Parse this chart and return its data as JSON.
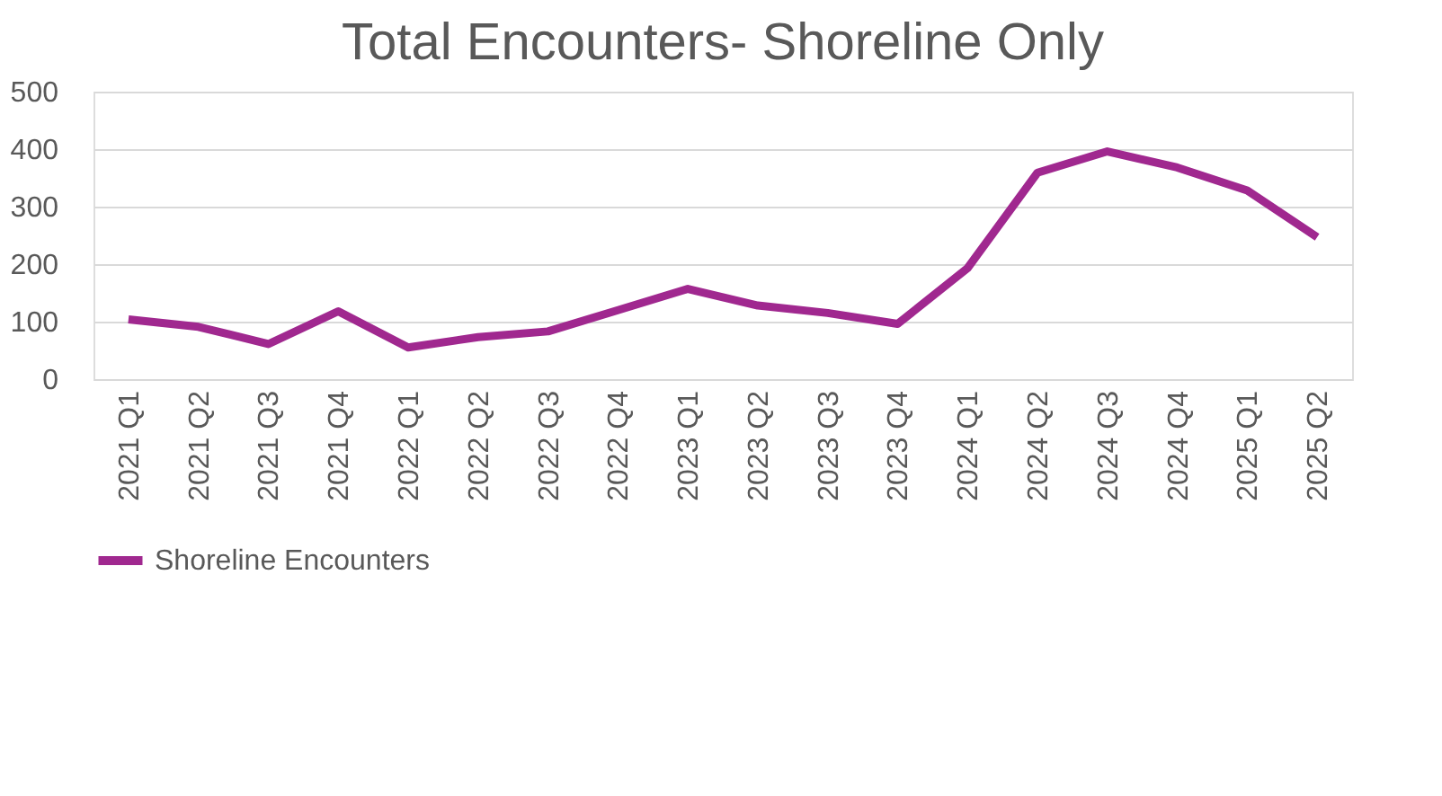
{
  "chart_data": {
    "type": "line",
    "title": "Total Encounters- Shoreline Only",
    "categories": [
      "2021 Q1",
      "2021 Q2",
      "2021 Q3",
      "2021 Q4",
      "2022 Q1",
      "2022 Q2",
      "2022 Q3",
      "2022 Q4",
      "2023 Q1",
      "2023 Q2",
      "2023 Q3",
      "2023 Q4",
      "2024 Q1",
      "2024 Q2",
      "2024 Q3",
      "2024 Q4",
      "2025 Q1",
      "2025 Q2"
    ],
    "series": [
      {
        "name": "Shoreline Encounters",
        "color": "#a0288f",
        "values": [
          104,
          91,
          61,
          118,
          55,
          73,
          83,
          120,
          157,
          128,
          115,
          96,
          193,
          359,
          396,
          368,
          328,
          247
        ]
      }
    ],
    "ylim": [
      0,
      500
    ],
    "yticks": [
      0,
      100,
      200,
      300,
      400,
      500
    ],
    "grid": "y",
    "legend": "bottom",
    "marker": "none",
    "line_style": "solid"
  }
}
